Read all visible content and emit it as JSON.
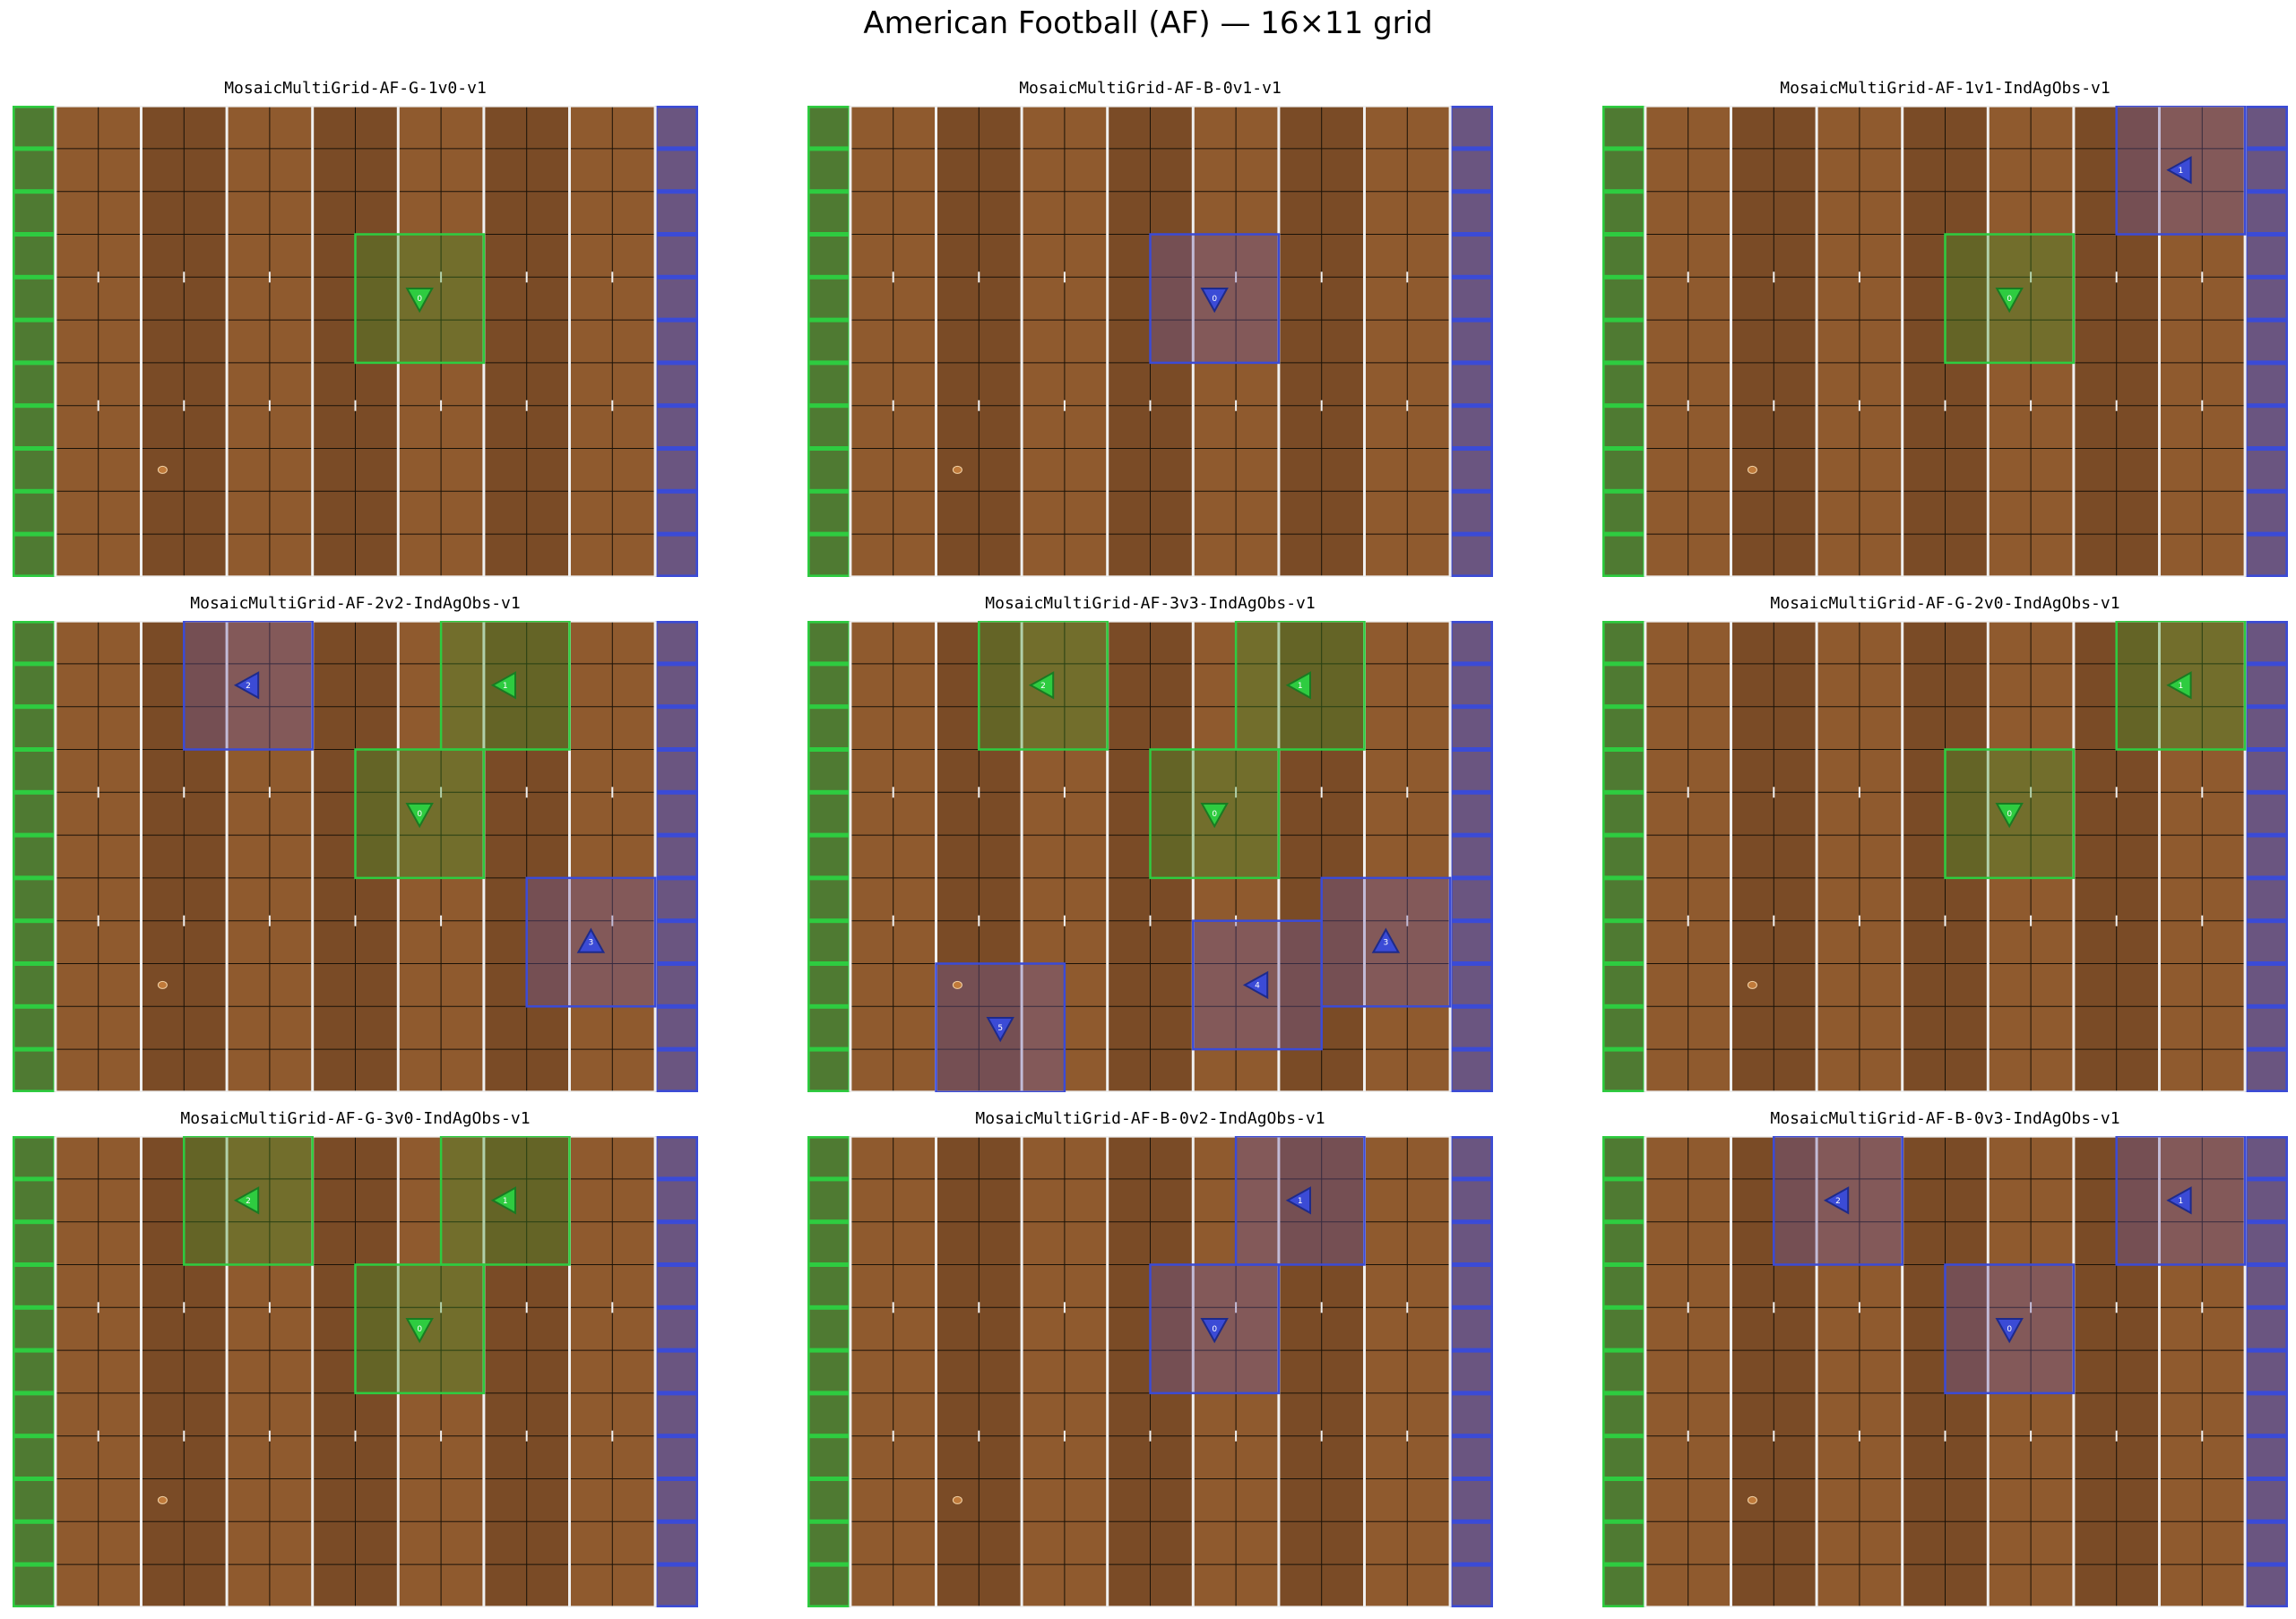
{
  "figure": {
    "title": "American Football (AF) — 16×11 grid"
  },
  "grid": {
    "cols": 16,
    "rows": 11
  },
  "colors": {
    "border": "#5a3b20",
    "field_light": "#8f5a2e",
    "field_dark": "#7a4b26",
    "grid_line": "#1a1208",
    "yard_line": "#f0f0f0",
    "green_team": "#2ecc40",
    "green_endzone": "#4f7a32",
    "blue_team": "#3b4bd6",
    "blue_endzone": "#6a5580",
    "ball": "#c07a3a"
  },
  "panels": [
    {
      "title": "MosaicMultiGrid-AF-G-1v0-v1",
      "ball": [
        3,
        8
      ],
      "agents": [
        {
          "team": "green",
          "col": 9,
          "row": 4,
          "dir": "down",
          "label": "0"
        }
      ]
    },
    {
      "title": "MosaicMultiGrid-AF-B-0v1-v1",
      "ball": [
        3,
        8
      ],
      "agents": [
        {
          "team": "blue",
          "col": 9,
          "row": 4,
          "dir": "down",
          "label": "0"
        }
      ]
    },
    {
      "title": "MosaicMultiGrid-AF-1v1-IndAgObs-v1",
      "ball": [
        3,
        8
      ],
      "agents": [
        {
          "team": "green",
          "col": 9,
          "row": 4,
          "dir": "down",
          "label": "0"
        },
        {
          "team": "blue",
          "col": 13,
          "row": 1,
          "dir": "left",
          "label": "1"
        }
      ]
    },
    {
      "title": "MosaicMultiGrid-AF-2v2-IndAgObs-v1",
      "ball": [
        3,
        8
      ],
      "agents": [
        {
          "team": "green",
          "col": 9,
          "row": 4,
          "dir": "down",
          "label": "0"
        },
        {
          "team": "green",
          "col": 11,
          "row": 1,
          "dir": "left",
          "label": "1"
        },
        {
          "team": "blue",
          "col": 5,
          "row": 1,
          "dir": "left",
          "label": "2"
        },
        {
          "team": "blue",
          "col": 13,
          "row": 7,
          "dir": "up",
          "label": "3"
        }
      ]
    },
    {
      "title": "MosaicMultiGrid-AF-3v3-IndAgObs-v1",
      "ball": [
        3,
        8
      ],
      "agents": [
        {
          "team": "green",
          "col": 9,
          "row": 4,
          "dir": "down",
          "label": "0"
        },
        {
          "team": "green",
          "col": 11,
          "row": 1,
          "dir": "left",
          "label": "1"
        },
        {
          "team": "green",
          "col": 5,
          "row": 1,
          "dir": "left",
          "label": "2"
        },
        {
          "team": "blue",
          "col": 13,
          "row": 7,
          "dir": "up",
          "label": "3"
        },
        {
          "team": "blue",
          "col": 10,
          "row": 8,
          "dir": "left",
          "label": "4"
        },
        {
          "team": "blue",
          "col": 4,
          "row": 9,
          "dir": "down",
          "label": "5"
        }
      ]
    },
    {
      "title": "MosaicMultiGrid-AF-G-2v0-IndAgObs-v1",
      "ball": [
        3,
        8
      ],
      "agents": [
        {
          "team": "green",
          "col": 9,
          "row": 4,
          "dir": "down",
          "label": "0"
        },
        {
          "team": "green",
          "col": 13,
          "row": 1,
          "dir": "left",
          "label": "1"
        }
      ]
    },
    {
      "title": "MosaicMultiGrid-AF-G-3v0-IndAgObs-v1",
      "ball": [
        3,
        8
      ],
      "agents": [
        {
          "team": "green",
          "col": 9,
          "row": 4,
          "dir": "down",
          "label": "0"
        },
        {
          "team": "green",
          "col": 11,
          "row": 1,
          "dir": "left",
          "label": "1"
        },
        {
          "team": "green",
          "col": 5,
          "row": 1,
          "dir": "left",
          "label": "2"
        }
      ]
    },
    {
      "title": "MosaicMultiGrid-AF-B-0v2-IndAgObs-v1",
      "ball": [
        3,
        8
      ],
      "agents": [
        {
          "team": "blue",
          "col": 9,
          "row": 4,
          "dir": "down",
          "label": "0"
        },
        {
          "team": "blue",
          "col": 11,
          "row": 1,
          "dir": "left",
          "label": "1"
        }
      ]
    },
    {
      "title": "MosaicMultiGrid-AF-B-0v3-IndAgObs-v1",
      "ball": [
        3,
        8
      ],
      "agents": [
        {
          "team": "blue",
          "col": 9,
          "row": 4,
          "dir": "down",
          "label": "0"
        },
        {
          "team": "blue",
          "col": 13,
          "row": 1,
          "dir": "left",
          "label": "1"
        },
        {
          "team": "blue",
          "col": 5,
          "row": 1,
          "dir": "left",
          "label": "2"
        }
      ]
    }
  ]
}
